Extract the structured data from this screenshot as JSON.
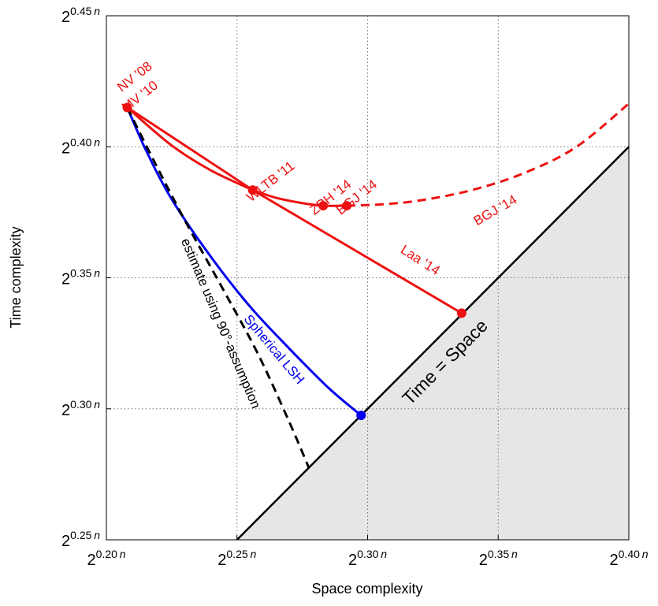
{
  "chart_data": {
    "type": "line",
    "xlabel": "Space complexity",
    "ylabel": "Time complexity",
    "xlim": [
      0.2,
      0.4
    ],
    "ylim": [
      0.25,
      0.45
    ],
    "grid": true,
    "x_ticks": [
      {
        "value": 0.2,
        "base": "2",
        "exp": "0.20",
        "var": "n"
      },
      {
        "value": 0.25,
        "base": "2",
        "exp": "0.25",
        "var": "n"
      },
      {
        "value": 0.3,
        "base": "2",
        "exp": "0.30",
        "var": "n"
      },
      {
        "value": 0.35,
        "base": "2",
        "exp": "0.35",
        "var": "n"
      },
      {
        "value": 0.4,
        "base": "2",
        "exp": "0.40",
        "var": "n"
      }
    ],
    "y_ticks": [
      {
        "value": 0.25,
        "base": "2",
        "exp": "0.25",
        "var": "n"
      },
      {
        "value": 0.3,
        "base": "2",
        "exp": "0.30",
        "var": "n"
      },
      {
        "value": 0.35,
        "base": "2",
        "exp": "0.35",
        "var": "n"
      },
      {
        "value": 0.4,
        "base": "2",
        "exp": "0.40",
        "var": "n"
      },
      {
        "value": 0.45,
        "base": "2",
        "exp": "0.45",
        "var": "n"
      }
    ],
    "region": {
      "label": "Time = Space",
      "fill": "#e6e6e6",
      "line": [
        [
          0.25,
          0.25
        ],
        [
          0.4,
          0.4
        ]
      ]
    },
    "series": [
      {
        "id": "laa",
        "name": "Laa '14",
        "color": "#ee1111",
        "style": "solid",
        "x": [
          0.208,
          0.256,
          0.336
        ],
        "y": [
          0.415,
          0.3835,
          0.3365
        ]
      },
      {
        "id": "zph",
        "color": "#ee1111",
        "style": "solid",
        "x": [
          0.208,
          0.225,
          0.24,
          0.256
        ],
        "y": [
          0.415,
          0.4005,
          0.391,
          0.3835
        ]
      },
      {
        "id": "bgj-solid",
        "color": "#ee1111",
        "style": "solid",
        "x": [
          0.256,
          0.265,
          0.275,
          0.283,
          0.292
        ],
        "y": [
          0.3835,
          0.3805,
          0.3785,
          0.3775,
          0.3775
        ]
      },
      {
        "id": "bgj-dashed",
        "name": "BGJ '14",
        "color": "#ee1111",
        "style": "dashed",
        "x": [
          0.292,
          0.305,
          0.32,
          0.34,
          0.36,
          0.38,
          0.4
        ],
        "y": [
          0.3775,
          0.378,
          0.3795,
          0.3835,
          0.39,
          0.4,
          0.4165
        ]
      },
      {
        "id": "lsh",
        "name": "Spherical LSH",
        "color": "#0000ee",
        "style": "solid",
        "x": [
          0.208,
          0.215,
          0.225,
          0.24,
          0.255,
          0.27,
          0.285,
          0.2975
        ],
        "y": [
          0.415,
          0.399,
          0.38,
          0.358,
          0.339,
          0.323,
          0.308,
          0.2975
        ]
      },
      {
        "id": "est",
        "name": "estimate using 90°-assumption",
        "color": "#000000",
        "style": "dashed",
        "x": [
          0.208,
          0.218,
          0.23,
          0.245,
          0.258,
          0.27,
          0.2775
        ],
        "y": [
          0.415,
          0.395,
          0.372,
          0.345,
          0.321,
          0.295,
          0.2775
        ]
      }
    ],
    "points": [
      {
        "x": 0.208,
        "y": 0.415,
        "color": "#ee1111"
      },
      {
        "x": 0.256,
        "y": 0.3835,
        "color": "#ee1111"
      },
      {
        "x": 0.283,
        "y": 0.3775,
        "color": "#ee1111"
      },
      {
        "x": 0.292,
        "y": 0.3775,
        "color": "#ee1111"
      },
      {
        "x": 0.336,
        "y": 0.3365,
        "color": "#ee1111"
      },
      {
        "x": 0.2975,
        "y": 0.2975,
        "color": "#0000ee"
      }
    ],
    "annotations": [
      {
        "text": "NV '08",
        "x": 0.211,
        "y": 0.4265,
        "rotate": -38,
        "color": "#ee1111"
      },
      {
        "text": "MV '10",
        "x": 0.213,
        "y": 0.419,
        "rotate": -38,
        "color": "#ee1111"
      },
      {
        "text": "WLTB '11",
        "x": 0.263,
        "y": 0.3865,
        "rotate": -38,
        "color": "#ee1111"
      },
      {
        "text": "ZPH '14",
        "x": 0.286,
        "y": 0.3805,
        "rotate": -38,
        "color": "#ee1111"
      },
      {
        "text": "BGJ '14",
        "x": 0.296,
        "y": 0.3805,
        "rotate": -38,
        "color": "#ee1111"
      },
      {
        "text": "BGJ '14",
        "x": 0.349,
        "y": 0.3755,
        "rotate": -30,
        "color": "#ee1111"
      },
      {
        "text": "Laa '14",
        "x": 0.32,
        "y": 0.3565,
        "rotate": 33,
        "color": "#ee1111"
      },
      {
        "text": "Spherical LSH",
        "x": 0.264,
        "y": 0.3225,
        "rotate": 50,
        "color": "#0000ee"
      },
      {
        "text": "estimate using 90°-assumption",
        "x": 0.2435,
        "y": 0.3325,
        "rotate": 67,
        "color": "#000000"
      },
      {
        "text": "Time = Space",
        "x": 0.33,
        "y": 0.3175,
        "rotate": -45,
        "color": "#000000"
      }
    ]
  }
}
